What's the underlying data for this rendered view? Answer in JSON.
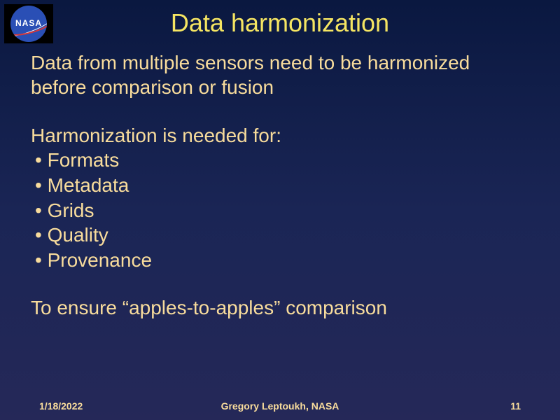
{
  "logo": {
    "label": "NASA"
  },
  "title": "Data harmonization",
  "intro": "Data from multiple sensors need to be harmonized before comparison or fusion",
  "subhead": "Harmonization is needed for:",
  "bullets": [
    "Formats",
    "Metadata",
    "Grids",
    "Quality",
    "Provenance"
  ],
  "closing": "To ensure “apples-to-apples” comparison",
  "footer": {
    "date": "1/18/2022",
    "author": "Gregory Leptoukh, NASA",
    "page": "11"
  },
  "style": {
    "title_color": "#f5e562",
    "body_color": "#f8dc9c",
    "bg_top": "#0a1840",
    "bg_bottom": "#252858",
    "title_fontsize": 36,
    "body_fontsize": 28,
    "footer_fontsize": 14
  }
}
